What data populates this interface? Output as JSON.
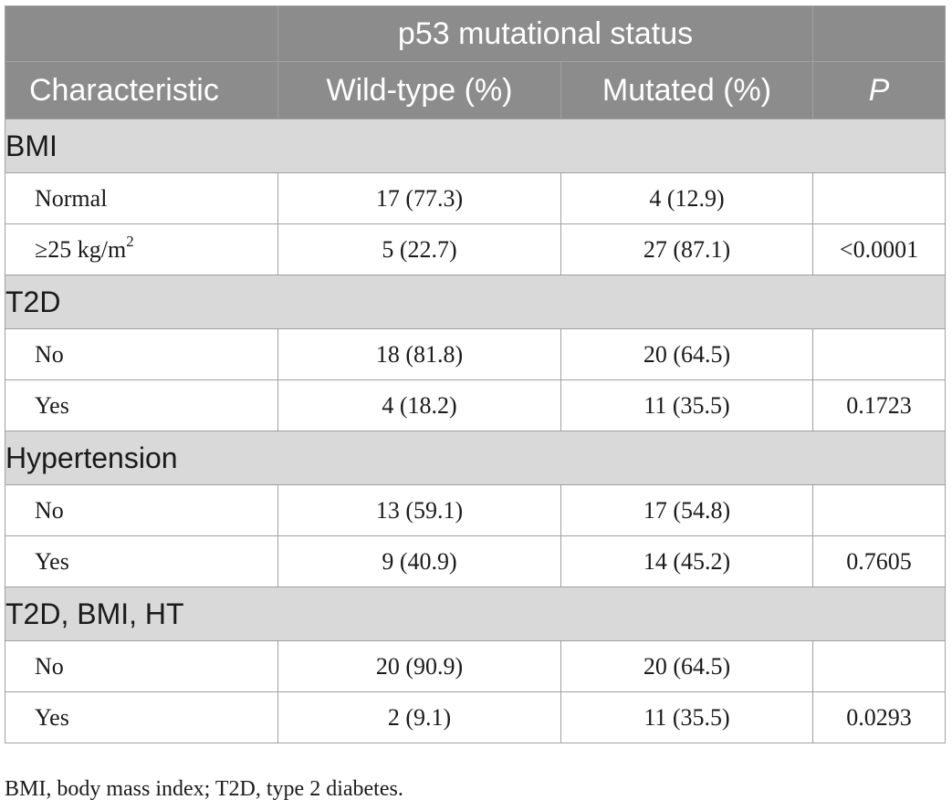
{
  "table": {
    "group_header": "p53 mutational status",
    "headers": {
      "characteristic": "Characteristic",
      "wild_type": "Wild-type (%)",
      "mutated": "Mutated (%)",
      "p": "P"
    },
    "sections": [
      {
        "title": "BMI",
        "rows": [
          {
            "label": "Normal",
            "wild_type": "17 (77.3)",
            "mutated": "4 (12.9)",
            "p": ""
          },
          {
            "label_main": "≥25 kg/m",
            "label_sup": "2",
            "wild_type": "5 (22.7)",
            "mutated": "27 (87.1)",
            "p": "<0.0001"
          }
        ]
      },
      {
        "title": "T2D",
        "rows": [
          {
            "label": "No",
            "wild_type": "18 (81.8)",
            "mutated": "20 (64.5)",
            "p": ""
          },
          {
            "label": "Yes",
            "wild_type": "4 (18.2)",
            "mutated": "11 (35.5)",
            "p": "0.1723"
          }
        ]
      },
      {
        "title": "Hypertension",
        "rows": [
          {
            "label": "No",
            "wild_type": "13 (59.1)",
            "mutated": "17 (54.8)",
            "p": ""
          },
          {
            "label": "Yes",
            "wild_type": "9 (40.9)",
            "mutated": "14 (45.2)",
            "p": "0.7605"
          }
        ]
      },
      {
        "title": "T2D, BMI, HT",
        "rows": [
          {
            "label": "No",
            "wild_type": "20 (90.9)",
            "mutated": "20 (64.5)",
            "p": ""
          },
          {
            "label": "Yes",
            "wild_type": "2 (9.1)",
            "mutated": "11 (35.5)",
            "p": "0.0293"
          }
        ]
      }
    ]
  },
  "footnote": "BMI, body mass index; T2D, type 2 diabetes.",
  "colors": {
    "header_bg": "#8c8c8c",
    "section_bg": "#d9d9d9",
    "border": "#a0a0a0"
  }
}
